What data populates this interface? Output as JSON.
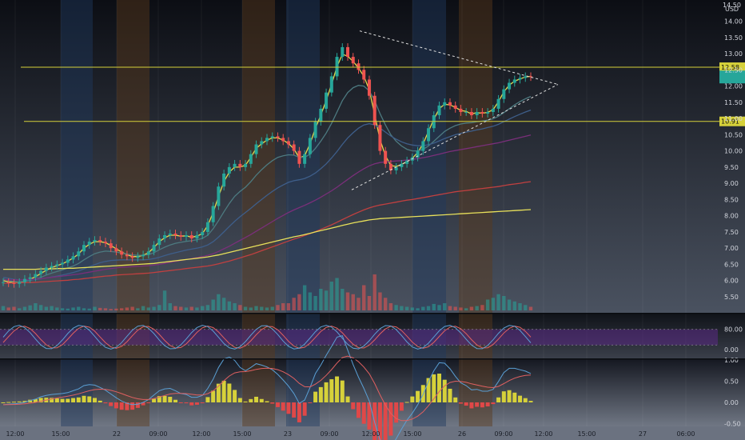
{
  "chart_data": {
    "type": "candlestick",
    "currency": "USD",
    "price_axis": {
      "ticks": [
        "14.00",
        "13.50",
        "13.00",
        "12.50",
        "12.00",
        "11.50",
        "11.00",
        "10.50",
        "10.00",
        "9.50",
        "9.00",
        "8.50",
        "8.00",
        "7.50",
        "7.00",
        "6.50",
        "6.00",
        "5.50"
      ],
      "range": [
        5.25,
        14.25
      ]
    },
    "time_axis": {
      "labels": [
        "12:00",
        "15:00",
        "22",
        "09:00",
        "12:00",
        "15:00",
        "23",
        "09:00",
        "12:00",
        "15:00",
        "26",
        "09:00",
        "12:00",
        "15:00",
        "27",
        "06:00"
      ]
    },
    "horizontal_lines": [
      {
        "value": 12.58,
        "label": "12.58",
        "color": "#d6d13a"
      },
      {
        "value": 10.91,
        "label": "10.91",
        "color": "#d6d13a"
      }
    ],
    "last_price_badge": {
      "value": 12.28,
      "color": "#26a69a"
    },
    "candles_close": [
      5.95,
      5.92,
      5.9,
      5.95,
      6.05,
      6.1,
      6.2,
      6.3,
      6.4,
      6.45,
      6.5,
      6.55,
      6.65,
      6.75,
      6.9,
      7.1,
      7.2,
      7.25,
      7.2,
      7.15,
      7.0,
      6.9,
      6.8,
      6.75,
      6.7,
      6.75,
      6.8,
      6.9,
      7.1,
      7.3,
      7.4,
      7.45,
      7.4,
      7.35,
      7.4,
      7.3,
      7.4,
      7.5,
      7.8,
      8.3,
      8.9,
      9.3,
      9.5,
      9.6,
      9.5,
      9.6,
      9.9,
      10.2,
      10.3,
      10.4,
      10.45,
      10.4,
      10.3,
      10.2,
      10.0,
      9.6,
      9.9,
      10.4,
      10.9,
      11.3,
      11.8,
      12.3,
      12.9,
      13.2,
      12.9,
      12.7,
      12.5,
      12.2,
      11.7,
      10.8,
      10.0,
      9.6,
      9.4,
      9.5,
      9.6,
      9.7,
      9.8,
      10.0,
      10.3,
      10.7,
      11.1,
      11.4,
      11.5,
      11.4,
      11.3,
      11.2,
      11.2,
      11.1,
      11.2,
      11.15,
      11.2,
      11.3,
      11.6,
      11.9,
      12.1,
      12.2,
      12.25,
      12.3,
      12.28
    ],
    "volume": [
      0.12,
      0.08,
      0.1,
      0.06,
      0.1,
      0.14,
      0.2,
      0.15,
      0.1,
      0.12,
      0.08,
      0.06,
      0.05,
      0.08,
      0.1,
      0.06,
      0.05,
      0.1,
      0.07,
      0.06,
      0.04,
      0.05,
      0.06,
      0.08,
      0.1,
      0.06,
      0.12,
      0.08,
      0.1,
      0.15,
      0.55,
      0.2,
      0.12,
      0.1,
      0.08,
      0.1,
      0.08,
      0.12,
      0.15,
      0.3,
      0.45,
      0.35,
      0.25,
      0.2,
      0.15,
      0.1,
      0.08,
      0.12,
      0.1,
      0.08,
      0.1,
      0.15,
      0.2,
      0.2,
      0.35,
      0.45,
      0.7,
      0.5,
      0.4,
      0.6,
      0.55,
      0.8,
      0.9,
      0.6,
      0.5,
      0.45,
      0.35,
      0.7,
      0.4,
      1.0,
      0.5,
      0.35,
      0.2,
      0.15,
      0.12,
      0.1,
      0.08,
      0.06,
      0.1,
      0.12,
      0.18,
      0.15,
      0.2,
      0.12,
      0.1,
      0.08,
      0.06,
      0.1,
      0.12,
      0.15,
      0.3,
      0.35,
      0.45,
      0.4,
      0.3,
      0.25,
      0.2,
      0.15,
      0.1
    ],
    "moving_averages": [
      {
        "color": "#e6d94c",
        "values": [
          6.0,
          5.96,
          5.94,
          5.94,
          5.98,
          6.04,
          6.12,
          6.22,
          6.32,
          6.4,
          6.46,
          6.52,
          6.6,
          6.7,
          6.82,
          7.0,
          7.12,
          7.2,
          7.2,
          7.17,
          7.08,
          6.98,
          6.88,
          6.8,
          6.74,
          6.74,
          6.78,
          6.86,
          7.02,
          7.2,
          7.32,
          7.4,
          7.4,
          7.37,
          7.38,
          7.34,
          7.37,
          7.45,
          7.7,
          8.1,
          8.6,
          9.05,
          9.35,
          9.5,
          9.5,
          9.56,
          9.8,
          10.08,
          10.22,
          10.33,
          10.4,
          10.4,
          10.33,
          10.23,
          10.06,
          9.78,
          9.85,
          10.22,
          10.7,
          11.1,
          11.56,
          12.05,
          12.6,
          12.98,
          12.92,
          12.76,
          12.56,
          12.3,
          11.88,
          11.12,
          10.35,
          9.85,
          9.55,
          9.52,
          9.58,
          9.67,
          9.77,
          9.95,
          10.22,
          10.6,
          10.98,
          11.3,
          11.44,
          11.42,
          11.34,
          11.25,
          11.22,
          11.14,
          11.18,
          11.16,
          11.19,
          11.27,
          11.52,
          11.82,
          12.03,
          12.15,
          12.22,
          12.28,
          12.3
        ]
      },
      {
        "color": "#4d7a80",
        "values": [
          6.05,
          6.0,
          5.97,
          5.96,
          5.98,
          6.0,
          6.05,
          6.1,
          6.17,
          6.23,
          6.28,
          6.33,
          6.39,
          6.45,
          6.53,
          6.64,
          6.74,
          6.83,
          6.88,
          6.91,
          6.9,
          6.88,
          6.85,
          6.82,
          6.79,
          6.78,
          6.78,
          6.8,
          6.86,
          6.95,
          7.03,
          7.1,
          7.15,
          7.18,
          7.21,
          7.23,
          7.26,
          7.3,
          7.4,
          7.6,
          7.85,
          8.12,
          8.38,
          8.6,
          8.75,
          8.88,
          9.05,
          9.25,
          9.42,
          9.57,
          9.7,
          9.8,
          9.85,
          9.88,
          9.87,
          9.8,
          9.8,
          9.9,
          10.08,
          10.3,
          10.55,
          10.85,
          11.2,
          11.55,
          11.8,
          11.95,
          12.02,
          12.0,
          11.85,
          11.55,
          11.15,
          10.8,
          10.5,
          10.3,
          10.15,
          10.05,
          10.0,
          10.0,
          10.05,
          10.15,
          10.3,
          10.45,
          10.6,
          10.7,
          10.78,
          10.83,
          10.86,
          10.87,
          10.9,
          10.92,
          10.95,
          10.99,
          11.07,
          11.18,
          11.3,
          11.42,
          11.52,
          11.61,
          11.68
        ]
      },
      {
        "color": "#3e5e8a",
        "values": [
          6.1,
          6.07,
          6.04,
          6.02,
          6.02,
          6.02,
          6.03,
          6.05,
          6.08,
          6.11,
          6.14,
          6.17,
          6.21,
          6.25,
          6.3,
          6.36,
          6.43,
          6.49,
          6.55,
          6.59,
          6.62,
          6.63,
          6.64,
          6.64,
          6.64,
          6.64,
          6.64,
          6.65,
          6.68,
          6.72,
          6.77,
          6.82,
          6.86,
          6.9,
          6.94,
          6.97,
          7.0,
          7.04,
          7.1,
          7.2,
          7.34,
          7.5,
          7.67,
          7.83,
          7.97,
          8.1,
          8.23,
          8.37,
          8.5,
          8.63,
          8.75,
          8.86,
          8.95,
          9.03,
          9.08,
          9.11,
          9.15,
          9.22,
          9.32,
          9.45,
          9.6,
          9.78,
          9.98,
          10.2,
          10.4,
          10.56,
          10.7,
          10.8,
          10.84,
          10.8,
          10.7,
          10.58,
          10.46,
          10.36,
          10.28,
          10.22,
          10.18,
          10.16,
          10.16,
          10.19,
          10.24,
          10.31,
          10.38,
          10.44,
          10.5,
          10.54,
          10.58,
          10.61,
          10.65,
          10.68,
          10.72,
          10.76,
          10.82,
          10.9,
          10.98,
          11.06,
          11.13,
          11.2,
          11.26
        ]
      },
      {
        "color": "#7a2f7a",
        "values": [
          6.02,
          6.02,
          6.02,
          6.02,
          6.03,
          6.04,
          6.05,
          6.06,
          6.08,
          6.1,
          6.12,
          6.14,
          6.16,
          6.18,
          6.2,
          6.23,
          6.26,
          6.29,
          6.32,
          6.35,
          6.37,
          6.39,
          6.41,
          6.42,
          6.43,
          6.44,
          6.45,
          6.46,
          6.48,
          6.5,
          6.53,
          6.56,
          6.59,
          6.62,
          6.65,
          6.68,
          6.71,
          6.74,
          6.78,
          6.83,
          6.9,
          6.98,
          7.06,
          7.15,
          7.24,
          7.33,
          7.42,
          7.52,
          7.62,
          7.72,
          7.82,
          7.92,
          8.01,
          8.1,
          8.18,
          8.25,
          8.32,
          8.4,
          8.48,
          8.57,
          8.67,
          8.77,
          8.88,
          9.0,
          9.12,
          9.24,
          9.35,
          9.45,
          9.54,
          9.6,
          9.64,
          9.66,
          9.68,
          9.69,
          9.7,
          9.72,
          9.74,
          9.76,
          9.79,
          9.82,
          9.86,
          9.9,
          9.94,
          9.98,
          10.01,
          10.04,
          10.07,
          10.1,
          10.13,
          10.16,
          10.19,
          10.22,
          10.25,
          10.29,
          10.33,
          10.37,
          10.41,
          10.45,
          10.49
        ]
      },
      {
        "color": "#c04040",
        "values": [
          5.92,
          5.92,
          5.93,
          5.93,
          5.94,
          5.94,
          5.95,
          5.96,
          5.97,
          5.98,
          5.99,
          6.0,
          6.01,
          6.03,
          6.04,
          6.06,
          6.08,
          6.1,
          6.12,
          6.14,
          6.15,
          6.17,
          6.18,
          6.19,
          6.2,
          6.21,
          6.22,
          6.23,
          6.25,
          6.27,
          6.29,
          6.31,
          6.33,
          6.35,
          6.37,
          6.39,
          6.41,
          6.43,
          6.45,
          6.48,
          6.52,
          6.56,
          6.6,
          6.65,
          6.7,
          6.75,
          6.8,
          6.86,
          6.92,
          6.98,
          7.04,
          7.1,
          7.16,
          7.22,
          7.28,
          7.33,
          7.39,
          7.45,
          7.51,
          7.58,
          7.65,
          7.72,
          7.8,
          7.88,
          7.96,
          8.04,
          8.11,
          8.18,
          8.24,
          8.29,
          8.33,
          8.36,
          8.39,
          8.42,
          8.45,
          8.48,
          8.5,
          8.53,
          8.56,
          8.59,
          8.62,
          8.65,
          8.68,
          8.71,
          8.74,
          8.76,
          8.78,
          8.8,
          8.82,
          8.84,
          8.86,
          8.88,
          8.9,
          8.93,
          8.96,
          8.98,
          9.0,
          9.03,
          9.05
        ]
      },
      {
        "color": "#e8e05a",
        "values": [
          6.35,
          6.35,
          6.35,
          6.35,
          6.35,
          6.35,
          6.35,
          6.36,
          6.36,
          6.36,
          6.37,
          6.37,
          6.38,
          6.38,
          6.39,
          6.4,
          6.41,
          6.42,
          6.43,
          6.44,
          6.45,
          6.46,
          6.47,
          6.48,
          6.49,
          6.5,
          6.51,
          6.52,
          6.53,
          6.55,
          6.57,
          6.59,
          6.61,
          6.63,
          6.65,
          6.67,
          6.69,
          6.71,
          6.73,
          6.76,
          6.79,
          6.83,
          6.87,
          6.91,
          6.95,
          6.99,
          7.03,
          7.07,
          7.11,
          7.15,
          7.19,
          7.23,
          7.27,
          7.31,
          7.35,
          7.38,
          7.42,
          7.46,
          7.5,
          7.54,
          7.58,
          7.62,
          7.66,
          7.7,
          7.74,
          7.78,
          7.81,
          7.84,
          7.87,
          7.89,
          7.91,
          7.92,
          7.93,
          7.94,
          7.95,
          7.96,
          7.97,
          7.98,
          7.99,
          8.0,
          8.01,
          8.02,
          8.03,
          8.04,
          8.05,
          8.06,
          8.07,
          8.08,
          8.09,
          8.1,
          8.11,
          8.12,
          8.13,
          8.14,
          8.15,
          8.16,
          8.17,
          8.18,
          8.19
        ]
      }
    ],
    "stoch_rsi": {
      "ticks": [
        "80.00",
        "0.00"
      ],
      "overbought_band": "#5b2a86",
      "k_color": "#5a9fd4",
      "d_color": "#e06060"
    },
    "macd": {
      "ticks": [
        "1.00",
        "0.50",
        "0.00",
        "-0.50"
      ],
      "macd_color": "#5a9fd4",
      "signal_color": "#e06060",
      "hist_pos_color": "#d6d13a",
      "hist_neg_color": "#e04848",
      "hist_alt_color": "#26a69a"
    },
    "session_bands": [
      {
        "color": "#1e3a5f"
      },
      {
        "color": "#5a3a1a"
      },
      {
        "color": "#1e3a5f"
      },
      {
        "color": "#5a3a1a"
      },
      {
        "color": "#1e3a5f"
      },
      {
        "color": "#5a3a1a"
      }
    ]
  }
}
